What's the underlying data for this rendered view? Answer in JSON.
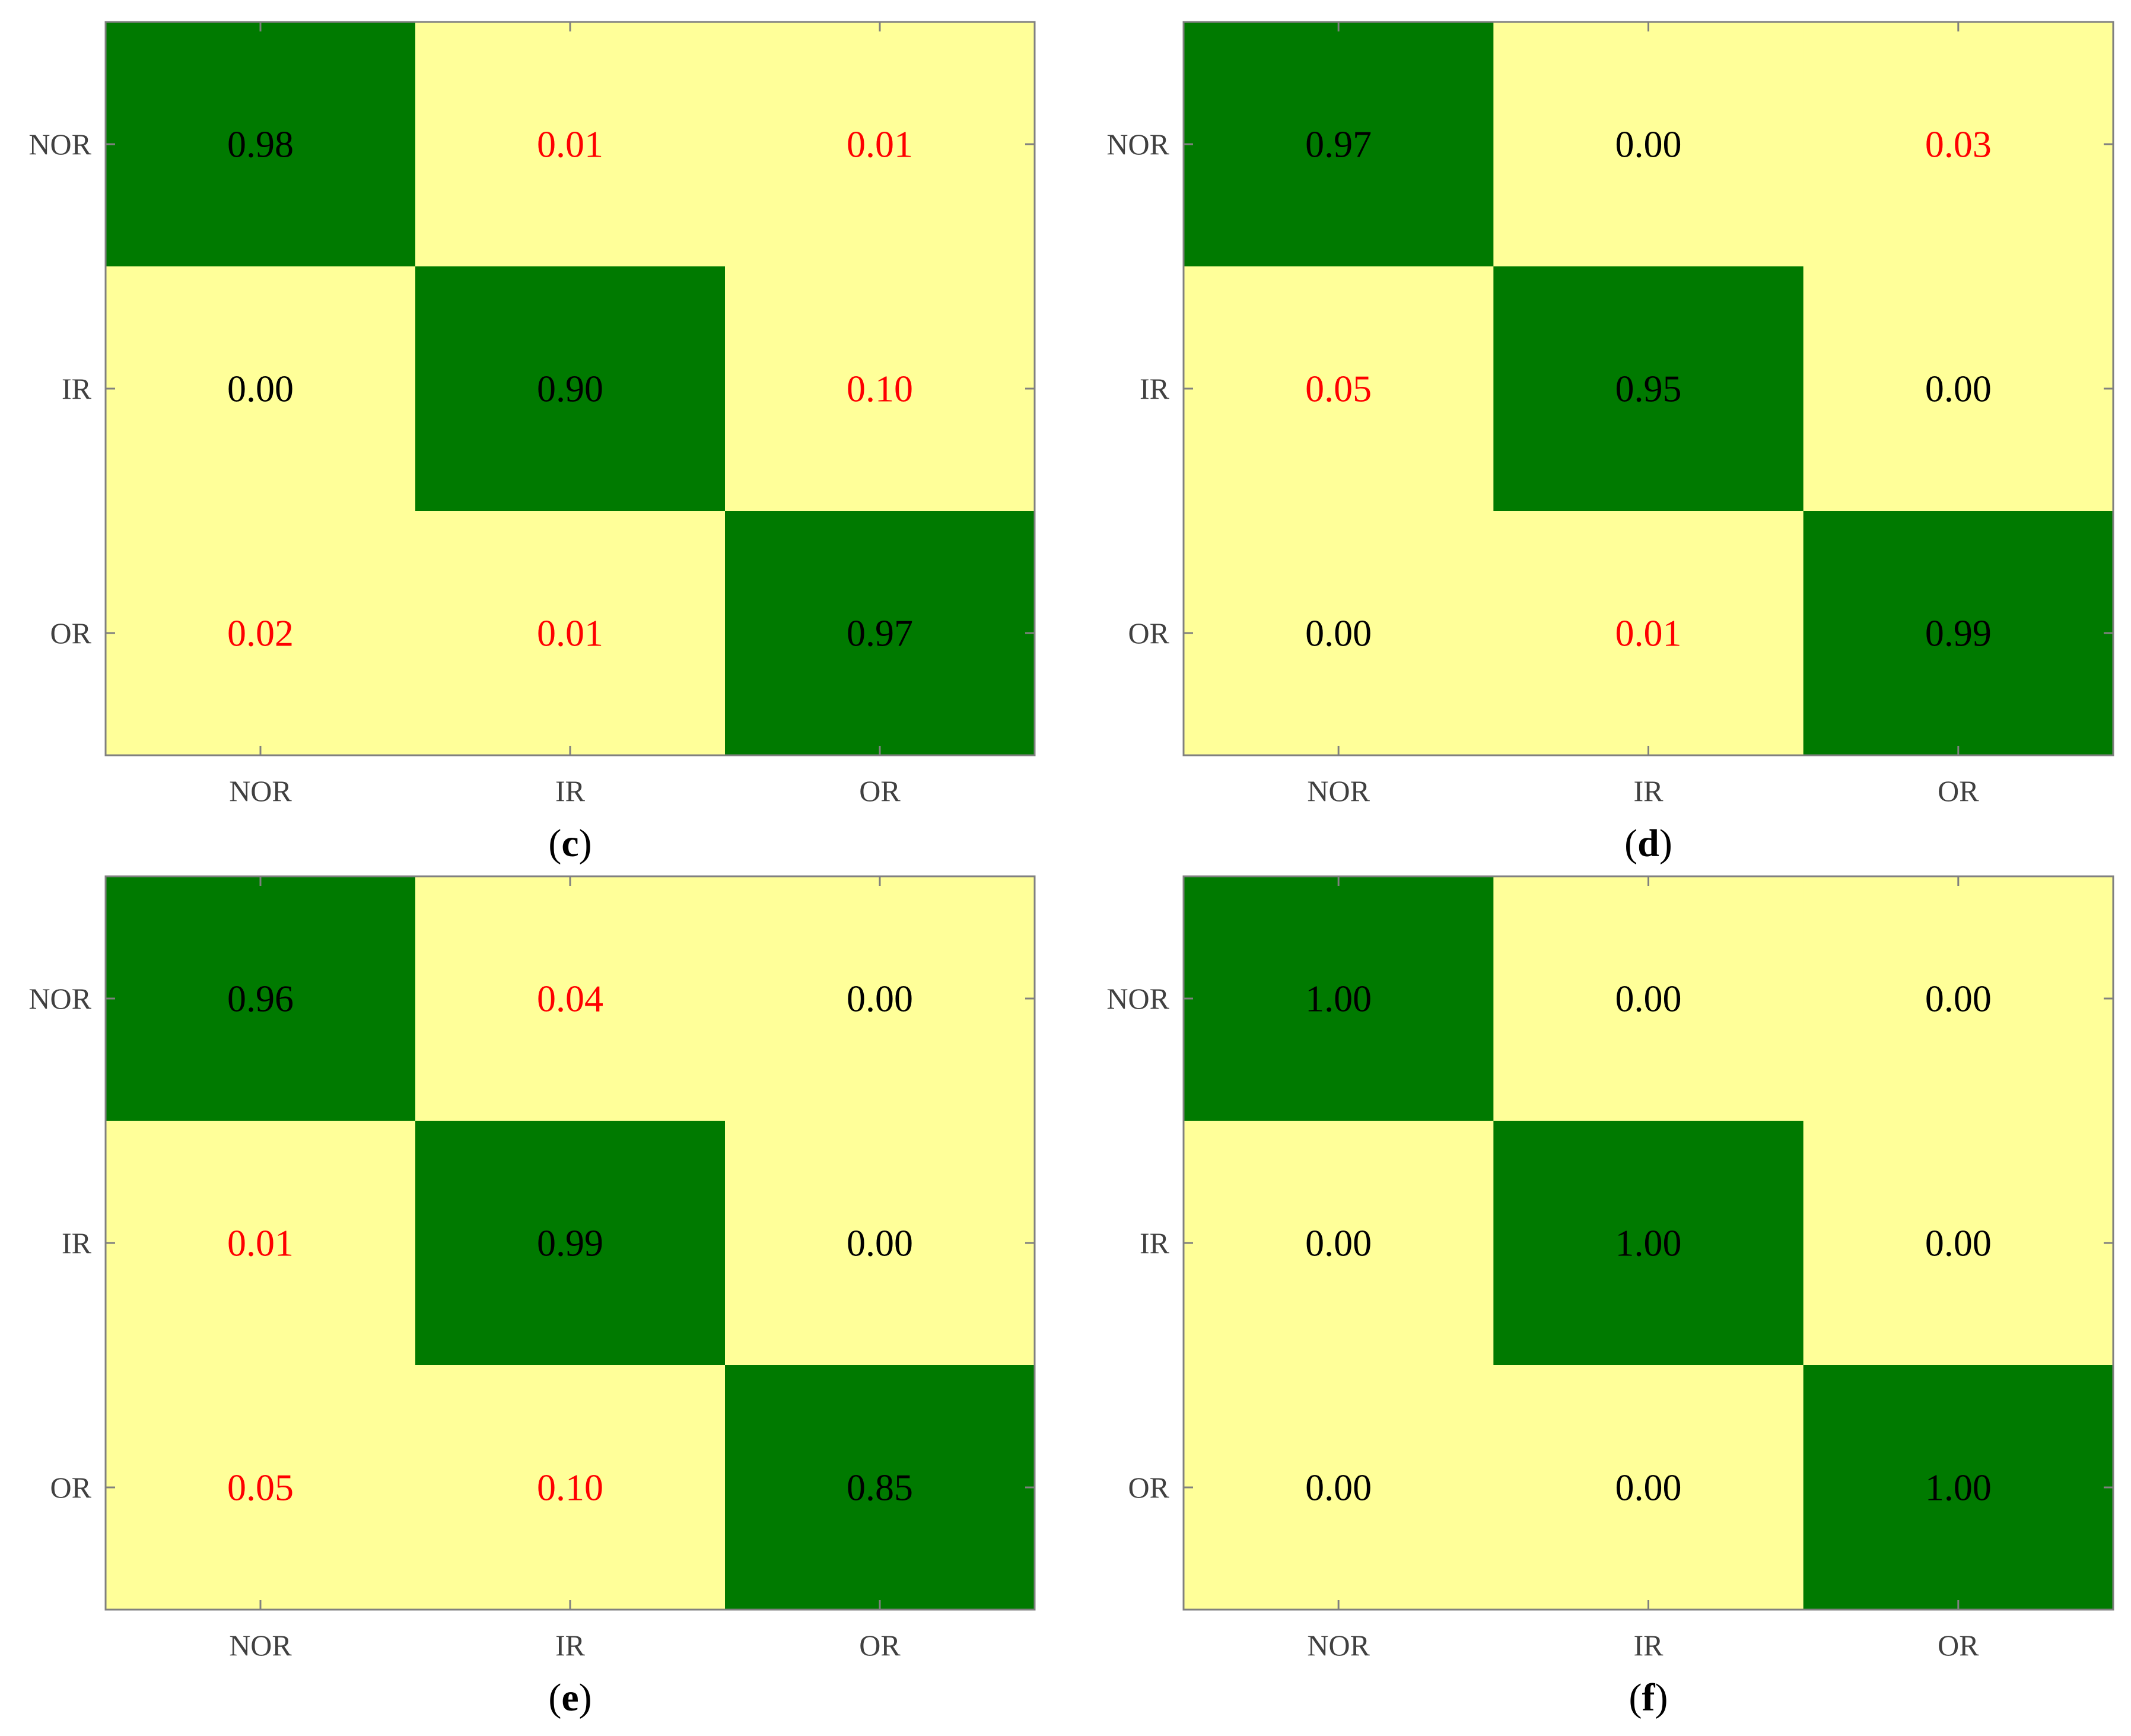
{
  "colors": {
    "diagonal": "#007a00",
    "off_diagonal": "#ffff99",
    "correct_text": "#000000",
    "error_text": "#ff0000",
    "axis": "#808080",
    "tick_label": "#404040"
  },
  "chart_data": [
    {
      "type": "heatmap",
      "panel_label": "c",
      "rows": [
        "NOR",
        "IR",
        "OR"
      ],
      "columns": [
        "NOR",
        "IR",
        "OR"
      ],
      "values": [
        [
          0.98,
          0.01,
          0.01
        ],
        [
          0.0,
          0.9,
          0.1
        ],
        [
          0.02,
          0.01,
          0.97
        ]
      ],
      "cell_text": [
        [
          "0.98",
          "0.01",
          "0.01"
        ],
        [
          "0.00",
          "0.90",
          "0.10"
        ],
        [
          "0.02",
          "0.01",
          "0.97"
        ]
      ],
      "grid": false
    },
    {
      "type": "heatmap",
      "panel_label": "d",
      "rows": [
        "NOR",
        "IR",
        "OR"
      ],
      "columns": [
        "NOR",
        "IR",
        "OR"
      ],
      "values": [
        [
          0.97,
          0.0,
          0.03
        ],
        [
          0.05,
          0.95,
          0.0
        ],
        [
          0.0,
          0.01,
          0.99
        ]
      ],
      "cell_text": [
        [
          "0.97",
          "0.00",
          "0.03"
        ],
        [
          "0.05",
          "0.95",
          "0.00"
        ],
        [
          "0.00",
          "0.01",
          "0.99"
        ]
      ],
      "grid": false
    },
    {
      "type": "heatmap",
      "panel_label": "e",
      "rows": [
        "NOR",
        "IR",
        "OR"
      ],
      "columns": [
        "NOR",
        "IR",
        "OR"
      ],
      "values": [
        [
          0.96,
          0.04,
          0.0
        ],
        [
          0.01,
          0.99,
          0.0
        ],
        [
          0.05,
          0.1,
          0.85
        ]
      ],
      "cell_text": [
        [
          "0.96",
          "0.04",
          "0.00"
        ],
        [
          "0.01",
          "0.99",
          "0.00"
        ],
        [
          "0.05",
          "0.10",
          "0.85"
        ]
      ],
      "grid": false
    },
    {
      "type": "heatmap",
      "panel_label": "f",
      "rows": [
        "NOR",
        "IR",
        "OR"
      ],
      "columns": [
        "NOR",
        "IR",
        "OR"
      ],
      "values": [
        [
          1.0,
          0.0,
          0.0
        ],
        [
          0.0,
          1.0,
          0.0
        ],
        [
          0.0,
          0.0,
          1.0
        ]
      ],
      "cell_text": [
        [
          "1.00",
          "0.00",
          "0.00"
        ],
        [
          "0.00",
          "1.00",
          "0.00"
        ],
        [
          "0.00",
          "0.00",
          "1.00"
        ]
      ],
      "grid": false
    }
  ]
}
